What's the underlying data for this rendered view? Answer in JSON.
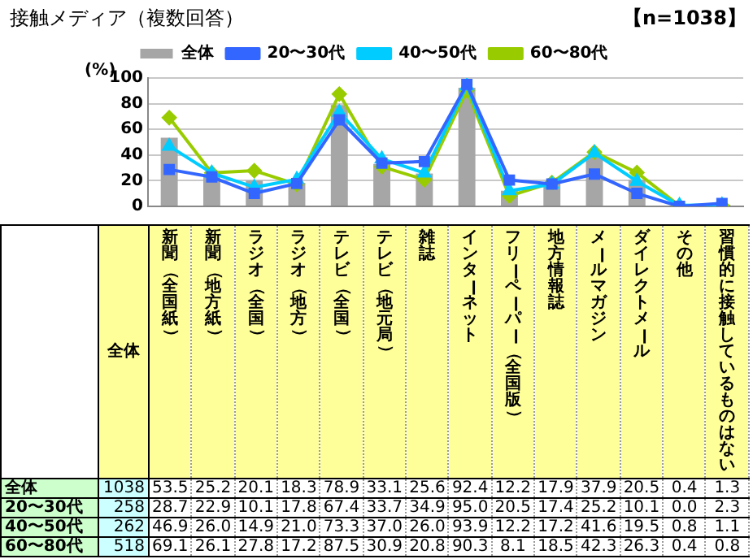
{
  "chart_data": {
    "type": "line",
    "title": "接触メディア（複数回答）",
    "ylabel": "(%)",
    "categories": [
      "新聞（全国紙）",
      "新聞（地方紙）",
      "ラジオ（全国）",
      "ラジオ（地方）",
      "テレビ（全国）",
      "テレビ（地元局）",
      "雑誌",
      "インターネット",
      "フリーペーパー（全国版）",
      "地方情報誌",
      "メールマガジン",
      "ダイレクトメール",
      "その他",
      "習慣的に接触しているものはない"
    ],
    "series": [
      {
        "name": "全体",
        "type": "bar",
        "color": "#a6a6a6",
        "values": [
          53.5,
          25.2,
          20.1,
          18.3,
          78.9,
          33.1,
          25.6,
          92.4,
          12.2,
          17.9,
          37.9,
          20.5,
          0.4,
          1.3
        ],
        "value_labels": [
          "53.5",
          "25.2",
          "20.1",
          "18.3",
          "78.9",
          "33.1",
          "25.6",
          "92.4",
          "12.2",
          "17.9",
          "37.9",
          "20.5",
          "0.4",
          "1.3"
        ]
      },
      {
        "name": "20〜30代",
        "marker": "square",
        "color": "#3366ff",
        "values": [
          28.7,
          22.9,
          10.1,
          17.8,
          67.4,
          33.7,
          34.9,
          95.0,
          20.5,
          17.4,
          25.2,
          10.1,
          0.0,
          2.3
        ],
        "value_labels": [
          "28.7",
          "22.9",
          "10.1",
          "17.8",
          "67.4",
          "33.7",
          "34.9",
          "95.0",
          "20.5",
          "17.4",
          "25.2",
          "10.1",
          "0.0",
          "2.3"
        ]
      },
      {
        "name": "40〜50代",
        "marker": "triangle",
        "color": "#00ccff",
        "values": [
          46.9,
          26.0,
          14.9,
          21.0,
          73.3,
          37.0,
          26.0,
          93.9,
          12.2,
          17.2,
          41.6,
          19.5,
          0.8,
          1.1
        ],
        "value_labels": [
          "46.9",
          "26.0",
          "14.9",
          "21.0",
          "73.3",
          "37.0",
          "26.0",
          "93.9",
          "12.2",
          "17.2",
          "41.6",
          "19.5",
          "0.8",
          "1.1"
        ]
      },
      {
        "name": "60〜80代",
        "marker": "diamond",
        "color": "#99cc00",
        "values": [
          69.1,
          26.1,
          27.8,
          17.2,
          87.5,
          30.9,
          20.8,
          90.3,
          8.1,
          18.5,
          42.3,
          26.3,
          0.4,
          0.8
        ],
        "value_labels": [
          "69.1",
          "26.1",
          "27.8",
          "17.2",
          "87.5",
          "30.9",
          "20.8",
          "90.3",
          "8.1",
          "18.5",
          "42.3",
          "26.3",
          "0.4",
          "0.8"
        ]
      }
    ],
    "ylim": [
      0,
      100
    ],
    "yticks": [
      0,
      20,
      40,
      60,
      80,
      100
    ],
    "grid": "y",
    "legend": "top",
    "annotations": [
      "【n=1038】",
      "全体",
      "1038",
      "258",
      "262",
      "518"
    ]
  }
}
